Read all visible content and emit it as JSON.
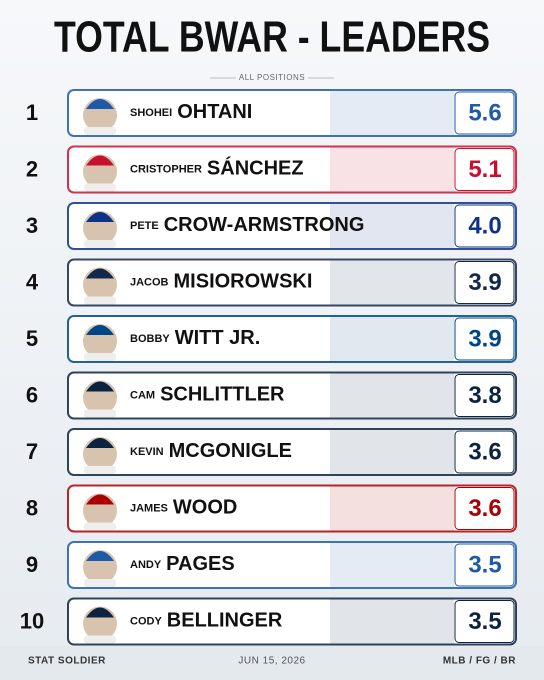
{
  "header": {
    "title": "TOTAL BWAR - LEADERS",
    "subtitle": "ALL POSITIONS"
  },
  "rows": [
    {
      "rank": 1,
      "first": "SHOHEI",
      "last": "OHTANI",
      "value": "5.6",
      "color": "#1e5aa8"
    },
    {
      "rank": 2,
      "first": "CRISTOPHER",
      "last": "SÁNCHEZ",
      "value": "5.1",
      "color": "#c8102e"
    },
    {
      "rank": 3,
      "first": "PETE",
      "last": "CROW-ARMSTRONG",
      "value": "4.0",
      "color": "#0e3386"
    },
    {
      "rank": 4,
      "first": "JACOB",
      "last": "MISIOROWSKI",
      "value": "3.9",
      "color": "#12284b"
    },
    {
      "rank": 5,
      "first": "BOBBY",
      "last": "WITT JR.",
      "value": "3.9",
      "color": "#004687"
    },
    {
      "rank": 6,
      "first": "CAM",
      "last": "SCHLITTLER",
      "value": "3.8",
      "color": "#0c2340"
    },
    {
      "rank": 7,
      "first": "KEVIN",
      "last": "MCGONIGLE",
      "value": "3.6",
      "color": "#0c2340"
    },
    {
      "rank": 8,
      "first": "JAMES",
      "last": "WOOD",
      "value": "3.6",
      "color": "#ab0003"
    },
    {
      "rank": 9,
      "first": "ANDY",
      "last": "PAGES",
      "value": "3.5",
      "color": "#1e5aa8"
    },
    {
      "rank": 10,
      "first": "CODY",
      "last": "BELLINGER",
      "value": "3.5",
      "color": "#0c2340"
    }
  ],
  "footer": {
    "left": "STAT SOLDIER",
    "center": "JUN 15, 2026",
    "right": "MLB / FG / BR"
  }
}
